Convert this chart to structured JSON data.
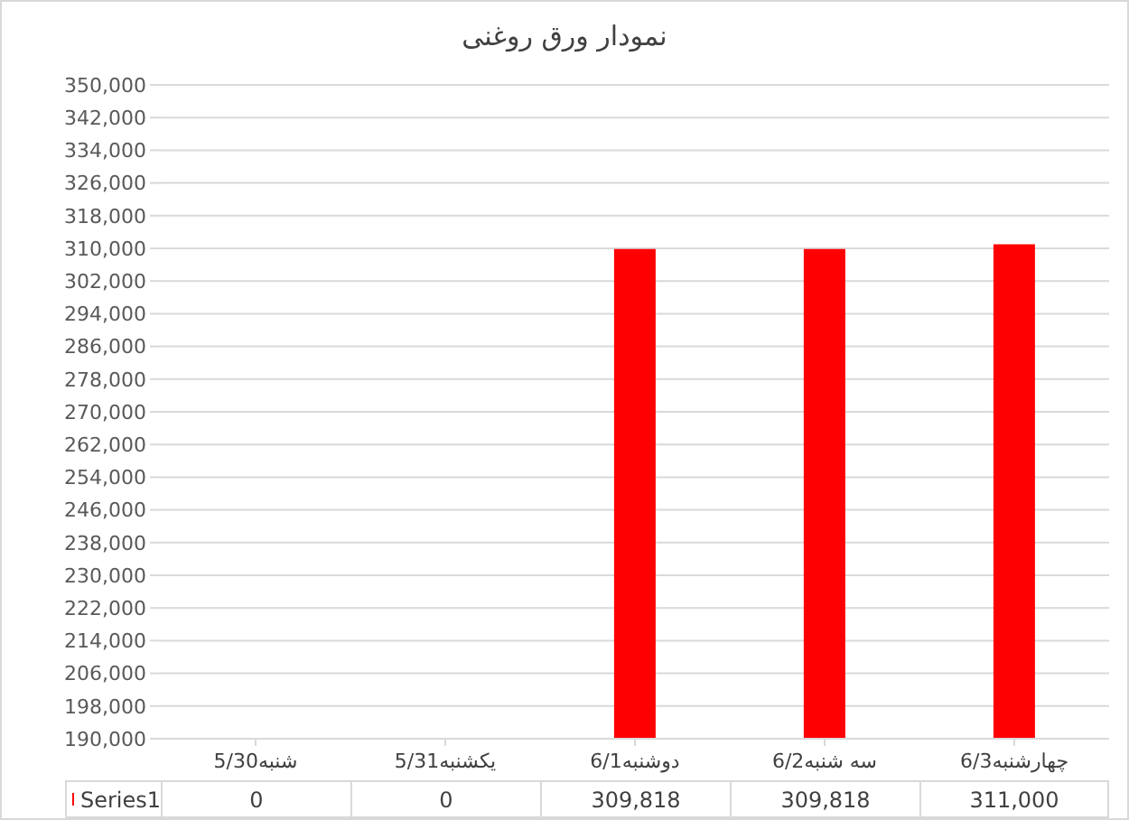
{
  "chart_data": {
    "type": "bar",
    "title": "نمودار ورق روغنی",
    "categories": [
      "شنبه5/30",
      "یکشنبه5/31",
      "دوشنبه6/1",
      "سه شنبه6/2",
      "چهارشنبه6/3"
    ],
    "series": [
      {
        "name": "Series1",
        "color": "#ff0000",
        "values": [
          null,
          null,
          309818,
          309818,
          311000
        ],
        "value_labels": [
          "0",
          "0",
          "309,818",
          "309,818",
          "311,000"
        ]
      }
    ],
    "ylim": [
      190000,
      350000
    ],
    "yticks": [
      {
        "value": 190000,
        "label": "190,000"
      },
      {
        "value": 198000,
        "label": "198,000"
      },
      {
        "value": 206000,
        "label": "206,000"
      },
      {
        "value": 214000,
        "label": "214,000"
      },
      {
        "value": 222000,
        "label": "222,000"
      },
      {
        "value": 230000,
        "label": "230,000"
      },
      {
        "value": 238000,
        "label": "238,000"
      },
      {
        "value": 246000,
        "label": "246,000"
      },
      {
        "value": 254000,
        "label": "254,000"
      },
      {
        "value": 262000,
        "label": "262,000"
      },
      {
        "value": 270000,
        "label": "270,000"
      },
      {
        "value": 278000,
        "label": "278,000"
      },
      {
        "value": 286000,
        "label": "286,000"
      },
      {
        "value": 294000,
        "label": "294,000"
      },
      {
        "value": 302000,
        "label": "302,000"
      },
      {
        "value": 310000,
        "label": "310,000"
      },
      {
        "value": 318000,
        "label": "318,000"
      },
      {
        "value": 326000,
        "label": "326,000"
      },
      {
        "value": 334000,
        "label": "334,000"
      },
      {
        "value": 342000,
        "label": "342,000"
      },
      {
        "value": 350000,
        "label": "350,000"
      }
    ],
    "grid": "y",
    "legend": "bottom"
  }
}
